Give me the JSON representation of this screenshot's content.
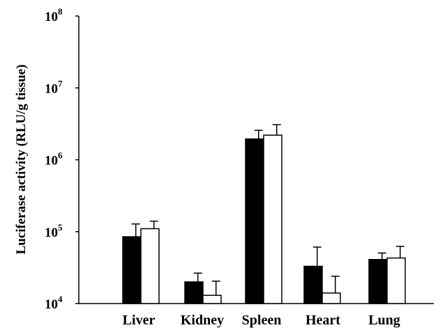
{
  "chart_data": {
    "type": "bar",
    "title": "",
    "xlabel": "",
    "ylabel": "Luciferase activity (RLU/g tissue)",
    "yscale": "log",
    "ylim": [
      10000,
      100000000
    ],
    "y_ticks": [
      {
        "value": 10000,
        "base": "10",
        "exp": "4"
      },
      {
        "value": 100000,
        "base": "10",
        "exp": "5"
      },
      {
        "value": 1000000,
        "base": "10",
        "exp": "6"
      },
      {
        "value": 10000000,
        "base": "10",
        "exp": "7"
      },
      {
        "value": 100000000,
        "base": "10",
        "exp": "8"
      }
    ],
    "categories": [
      "Liver",
      "Kidney",
      "Spleen",
      "Heart",
      "Lung"
    ],
    "series": [
      {
        "fill": "#000000",
        "values": [
          85000,
          20000,
          1950000,
          33000,
          41000
        ],
        "errors": [
          43000,
          6500,
          620000,
          28000,
          9500
        ]
      },
      {
        "fill": "#ffffff",
        "values": [
          110000,
          13000,
          2200000,
          14000,
          43000
        ],
        "errors": [
          30000,
          7500,
          880000,
          10000,
          19500
        ]
      }
    ],
    "grid": false,
    "legend": "none"
  }
}
